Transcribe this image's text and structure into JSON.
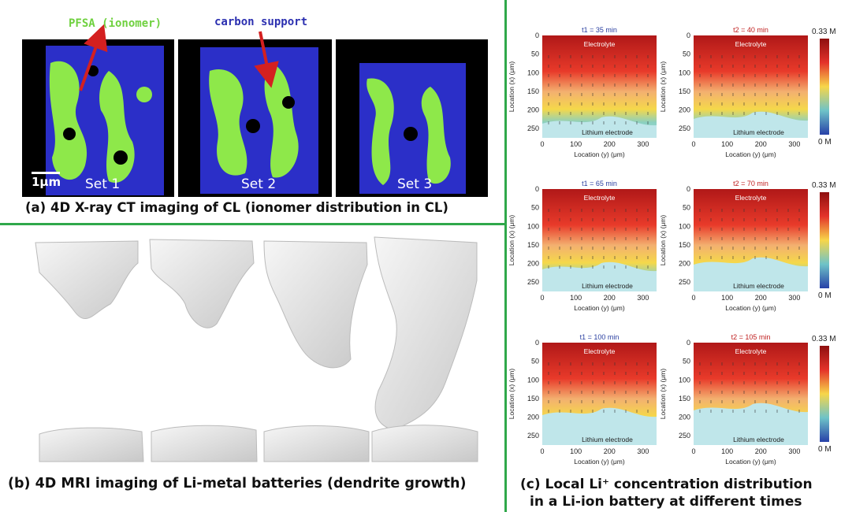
{
  "panel_a": {
    "label_pfsa": "PFSA (ionomer)",
    "label_carbon": "carbon support",
    "scale_bar": "1μm",
    "sets": [
      "Set 1",
      "Set 2",
      "Set 3"
    ],
    "caption": "(a) 4D X-ray CT imaging  of CL (ionomer distribution in CL)",
    "colors": {
      "ionomer": "#8ee84a",
      "carbon": "#2b2fc8",
      "pfsa_text": "#6fd13f",
      "carbon_text": "#2b2fb0",
      "arrow": "#d42020"
    }
  },
  "panel_b": {
    "caption": "(b) 4D MRI imaging  of  Li-metal batteries (dendrite growth)"
  },
  "panel_c": {
    "caption_line1": "(c) Local Li⁺ concentration distribution",
    "caption_line2": "in a Li-ion battery at different times",
    "xlabel": "Location (y) (μm)",
    "ylabel": "Location (x) (μm)",
    "x_ticks": [
      "0",
      "100",
      "200",
      "300"
    ],
    "y_ticks": [
      "0",
      "50",
      "100",
      "150",
      "200",
      "250"
    ],
    "colorbar_max": "0.33 M",
    "colorbar_min": "0 M",
    "region_top": "Electrolyte",
    "region_bottom": "Lithium electrode",
    "rows": [
      {
        "t1": "t1 = 35 min",
        "t2": "t2 = 40 min"
      },
      {
        "t1": "t1 = 65 min",
        "t2": "t2 = 70 min"
      },
      {
        "t1": "t1 = 100 min",
        "t2": "t2 = 105 min"
      }
    ],
    "colors": {
      "t1_title": "#2a3fa0",
      "t2_title": "#c02020"
    }
  }
}
